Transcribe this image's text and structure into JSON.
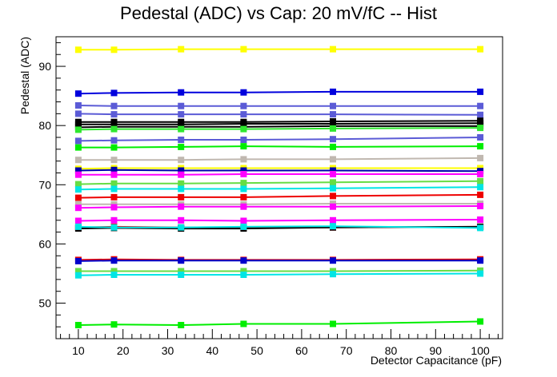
{
  "chart_data": {
    "type": "line",
    "title": "Pedestal (ADC) vs Cap: 20 mV/fC -- Hist",
    "xlabel": "Detector Capacitance (pF)",
    "ylabel": "Pedestal (ADC)",
    "xlim": [
      5,
      105
    ],
    "ylim": [
      44,
      95
    ],
    "x_ticks": [
      10,
      20,
      30,
      40,
      50,
      60,
      70,
      80,
      90,
      100
    ],
    "y_ticks": [
      50,
      60,
      70,
      80,
      90
    ],
    "grid": false,
    "legend": "none",
    "marker": "square",
    "x": [
      10,
      18,
      33,
      47,
      67,
      100
    ],
    "series": [
      {
        "color": "#ffff00",
        "values": [
          92.8,
          92.8,
          92.9,
          92.9,
          92.9,
          92.9
        ]
      },
      {
        "color": "#0000dd",
        "values": [
          85.4,
          85.5,
          85.6,
          85.6,
          85.7,
          85.7
        ]
      },
      {
        "color": "#5b5bd6",
        "values": [
          83.4,
          83.3,
          83.3,
          83.3,
          83.3,
          83.3
        ]
      },
      {
        "color": "#5b5bd6",
        "values": [
          82.0,
          81.9,
          81.9,
          81.9,
          81.9,
          81.8
        ]
      },
      {
        "color": "#000000",
        "values": [
          80.6,
          80.6,
          80.6,
          80.6,
          80.7,
          80.8
        ]
      },
      {
        "color": "#000000",
        "values": [
          80.2,
          80.2,
          80.2,
          80.3,
          80.3,
          80.4
        ]
      },
      {
        "color": "#000000",
        "values": [
          79.7,
          79.8,
          79.8,
          79.8,
          79.9,
          79.9
        ]
      },
      {
        "color": "#2ee82e",
        "values": [
          79.3,
          79.4,
          79.4,
          79.4,
          79.5,
          79.6
        ]
      },
      {
        "color": "#5b5bd6",
        "values": [
          77.4,
          77.5,
          77.6,
          77.6,
          77.7,
          78.0
        ]
      },
      {
        "color": "#00ee00",
        "values": [
          76.3,
          76.3,
          76.4,
          76.5,
          76.4,
          76.5
        ]
      },
      {
        "color": "#c0b8b0",
        "values": [
          74.2,
          74.2,
          74.2,
          74.3,
          74.3,
          74.5
        ]
      },
      {
        "color": "#ffff00",
        "values": [
          72.7,
          72.8,
          72.8,
          72.8,
          72.8,
          72.8
        ]
      },
      {
        "color": "#0000aa",
        "values": [
          72.4,
          72.5,
          72.4,
          72.4,
          72.4,
          72.3
        ]
      },
      {
        "color": "#ff00ff",
        "values": [
          71.7,
          71.7,
          71.7,
          71.8,
          71.8,
          71.8
        ]
      },
      {
        "color": "#66dd44",
        "values": [
          70.1,
          70.2,
          70.2,
          70.3,
          70.4,
          70.6
        ]
      },
      {
        "color": "#00e5e5",
        "values": [
          69.2,
          69.3,
          69.3,
          69.3,
          69.4,
          69.6
        ]
      },
      {
        "color": "#ee0000",
        "values": [
          67.8,
          67.9,
          67.9,
          67.9,
          68.1,
          68.3
        ]
      },
      {
        "color": "#c0b8b0",
        "values": [
          66.7,
          66.7,
          66.7,
          66.7,
          66.8,
          66.8
        ]
      },
      {
        "color": "#ff00ff",
        "values": [
          66.1,
          66.2,
          66.3,
          66.3,
          66.3,
          66.4
        ]
      },
      {
        "color": "#ff00ff",
        "values": [
          63.9,
          64.0,
          64.0,
          63.9,
          64.0,
          64.1
        ]
      },
      {
        "color": "#ee0000",
        "values": [
          62.8,
          62.9,
          62.8,
          62.8,
          62.8,
          62.9
        ]
      },
      {
        "color": "#000000",
        "values": [
          62.6,
          62.7,
          62.6,
          62.6,
          62.8,
          62.9
        ]
      },
      {
        "color": "#00e5e5",
        "values": [
          62.9,
          62.8,
          62.8,
          62.9,
          63.0,
          62.7
        ]
      },
      {
        "color": "#ee0000",
        "values": [
          57.3,
          57.4,
          57.3,
          57.3,
          57.3,
          57.4
        ]
      },
      {
        "color": "#0000cc",
        "values": [
          57.1,
          57.2,
          57.2,
          57.2,
          57.2,
          57.2
        ]
      },
      {
        "color": "#66dd44",
        "values": [
          55.4,
          55.4,
          55.4,
          55.4,
          55.4,
          55.5
        ]
      },
      {
        "color": "#00e5e5",
        "values": [
          54.7,
          54.8,
          54.8,
          54.8,
          54.9,
          55.0
        ]
      },
      {
        "color": "#00ee00",
        "values": [
          46.3,
          46.4,
          46.3,
          46.5,
          46.5,
          46.9
        ]
      }
    ]
  }
}
